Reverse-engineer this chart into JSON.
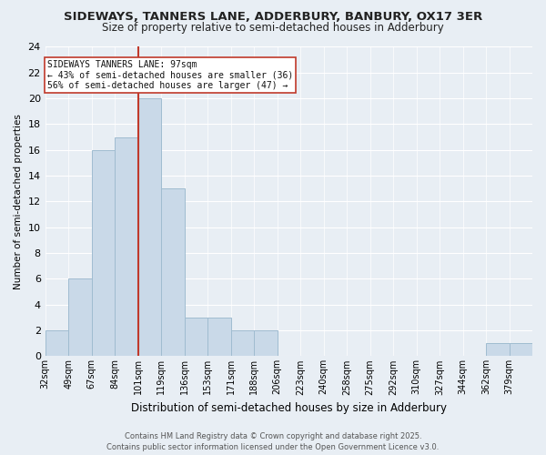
{
  "title": "SIDEWAYS, TANNERS LANE, ADDERBURY, BANBURY, OX17 3ER",
  "subtitle": "Size of property relative to semi-detached houses in Adderbury",
  "xlabel": "Distribution of semi-detached houses by size in Adderbury",
  "ylabel": "Number of semi-detached properties",
  "footnote1": "Contains HM Land Registry data © Crown copyright and database right 2025.",
  "footnote2": "Contains public sector information licensed under the Open Government Licence v3.0.",
  "annotation_title": "SIDEWAYS TANNERS LANE: 97sqm",
  "annotation_line1": "← 43% of semi-detached houses are smaller (36)",
  "annotation_line2": "56% of semi-detached houses are larger (47) →",
  "bar_color": "#c9d9e8",
  "bar_edge_color": "#a0bcd0",
  "highlight_color": "#c0392b",
  "categories": [
    "32sqm",
    "49sqm",
    "67sqm",
    "84sqm",
    "101sqm",
    "119sqm",
    "136sqm",
    "153sqm",
    "171sqm",
    "188sqm",
    "206sqm",
    "223sqm",
    "240sqm",
    "258sqm",
    "275sqm",
    "292sqm",
    "310sqm",
    "327sqm",
    "344sqm",
    "362sqm",
    "379sqm"
  ],
  "values": [
    2,
    6,
    16,
    17,
    20,
    13,
    3,
    3,
    2,
    2,
    0,
    0,
    0,
    0,
    0,
    0,
    0,
    0,
    0,
    1,
    1
  ],
  "highlight_bar_index": 4,
  "vline_position": 4.0,
  "ylim": [
    0,
    24
  ],
  "background_color": "#e8eef4"
}
